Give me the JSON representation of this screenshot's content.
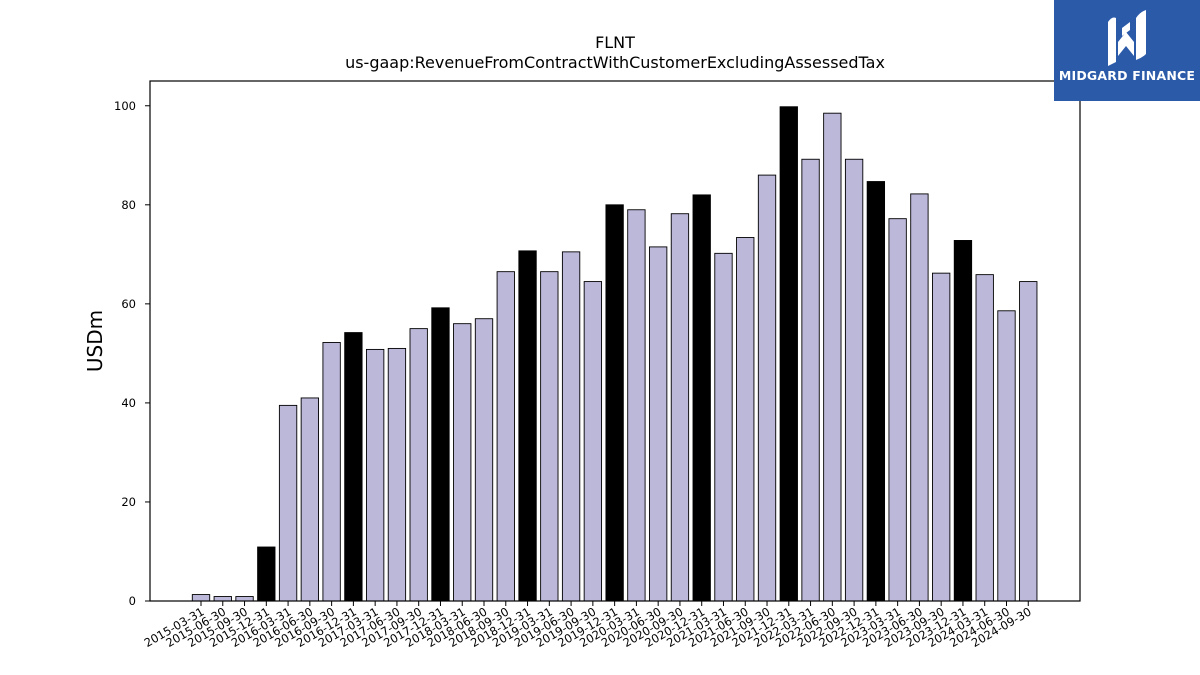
{
  "brand": {
    "name": "MIDGARD FINANCE",
    "color": "#2b5aa9",
    "icon": "midgard-logo-icon"
  },
  "chart_data": {
    "type": "bar",
    "title": "FLNT",
    "subtitle": "us-gaap:RevenueFromContractWithCustomerExcludingAssessedTax",
    "xlabel": "",
    "ylabel": "USDm",
    "ylim": [
      0,
      105
    ],
    "yticks": [
      0,
      20,
      40,
      60,
      80,
      100
    ],
    "grid": false,
    "colors": {
      "quarter": "#bcb8da",
      "year_end": "#000000",
      "edge": "#000000"
    },
    "categories": [
      "2015-03-31",
      "2015-06-30",
      "2015-09-30",
      "2015-12-31",
      "2016-03-31",
      "2016-06-30",
      "2016-09-30",
      "2016-12-31",
      "2017-03-31",
      "2017-06-30",
      "2017-09-30",
      "2017-12-31",
      "2018-03-31",
      "2018-06-30",
      "2018-09-30",
      "2018-12-31",
      "2019-03-31",
      "2019-06-30",
      "2019-09-30",
      "2019-12-31",
      "2020-03-31",
      "2020-06-30",
      "2020-09-30",
      "2020-12-31",
      "2021-03-31",
      "2021-06-30",
      "2021-09-30",
      "2021-12-31",
      "2022-03-31",
      "2022-06-30",
      "2022-09-30",
      "2022-12-31",
      "2023-03-31",
      "2023-06-30",
      "2023-09-30",
      "2023-12-31",
      "2024-03-31",
      "2024-06-30",
      "2024-09-30"
    ],
    "values": [
      1.3,
      0.9,
      0.9,
      10.9,
      39.5,
      41.0,
      52.2,
      54.2,
      50.8,
      51.0,
      55.0,
      59.2,
      56.0,
      57.0,
      66.5,
      70.7,
      66.5,
      70.5,
      64.5,
      80.0,
      79.0,
      71.5,
      78.2,
      82.0,
      70.2,
      73.4,
      86.0,
      99.8,
      89.2,
      98.5,
      89.2,
      84.7,
      77.2,
      82.2,
      66.2,
      72.8,
      65.9,
      58.6,
      64.5
    ],
    "highlight": [
      false,
      false,
      false,
      true,
      false,
      false,
      false,
      true,
      false,
      false,
      false,
      true,
      false,
      false,
      false,
      true,
      false,
      false,
      false,
      true,
      false,
      false,
      false,
      true,
      false,
      false,
      false,
      true,
      false,
      false,
      false,
      true,
      false,
      false,
      false,
      true,
      false,
      false,
      false
    ]
  }
}
